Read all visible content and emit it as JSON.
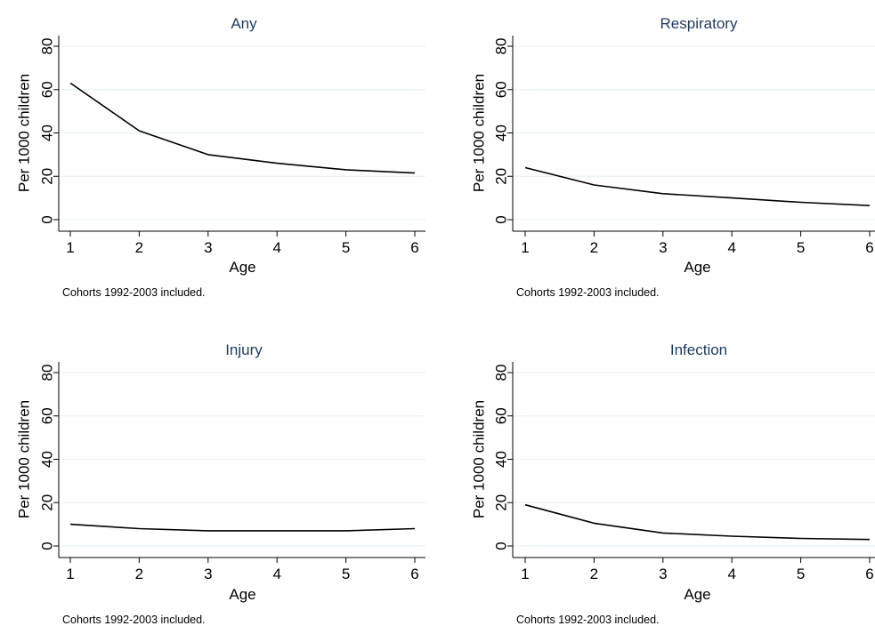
{
  "chart_data": [
    {
      "type": "line",
      "title": "Any",
      "xlabel": "Age",
      "ylabel": "Per 1000 children",
      "note": "Cohorts 1992-2003 included.",
      "x": [
        1,
        2,
        3,
        4,
        5,
        6
      ],
      "values": [
        63,
        41,
        30,
        26,
        23,
        21.5
      ],
      "xlim": [
        1,
        6
      ],
      "ylim": [
        0,
        80
      ],
      "xticks": [
        "1",
        "2",
        "3",
        "4",
        "5",
        "6"
      ],
      "yticks": [
        "0",
        "20",
        "40",
        "60",
        "80"
      ],
      "grid": true
    },
    {
      "type": "line",
      "title": "Respiratory",
      "xlabel": "Age",
      "ylabel": "Per 1000 children",
      "note": "Cohorts 1992-2003 included.",
      "x": [
        1,
        2,
        3,
        4,
        5,
        6
      ],
      "values": [
        24,
        16,
        12,
        10,
        8,
        6.5
      ],
      "xlim": [
        1,
        6
      ],
      "ylim": [
        0,
        80
      ],
      "xticks": [
        "1",
        "2",
        "3",
        "4",
        "5",
        "6"
      ],
      "yticks": [
        "0",
        "20",
        "40",
        "60",
        "80"
      ],
      "grid": true
    },
    {
      "type": "line",
      "title": "Injury",
      "xlabel": "Age",
      "ylabel": "Per 1000 children",
      "note": "Cohorts 1992-2003 included.",
      "x": [
        1,
        2,
        3,
        4,
        5,
        6
      ],
      "values": [
        10,
        8,
        7,
        7,
        7,
        8
      ],
      "xlim": [
        1,
        6
      ],
      "ylim": [
        0,
        80
      ],
      "xticks": [
        "1",
        "2",
        "3",
        "4",
        "5",
        "6"
      ],
      "yticks": [
        "0",
        "20",
        "40",
        "60",
        "80"
      ],
      "grid": true
    },
    {
      "type": "line",
      "title": "Infection",
      "xlabel": "Age",
      "ylabel": "Per 1000 children",
      "note": "Cohorts 1992-2003 included.",
      "x": [
        1,
        2,
        3,
        4,
        5,
        6
      ],
      "values": [
        19,
        10.5,
        6,
        4.5,
        3.5,
        3
      ],
      "xlim": [
        1,
        6
      ],
      "ylim": [
        0,
        80
      ],
      "xticks": [
        "1",
        "2",
        "3",
        "4",
        "5",
        "6"
      ],
      "yticks": [
        "0",
        "20",
        "40",
        "60",
        "80"
      ],
      "grid": true
    }
  ]
}
